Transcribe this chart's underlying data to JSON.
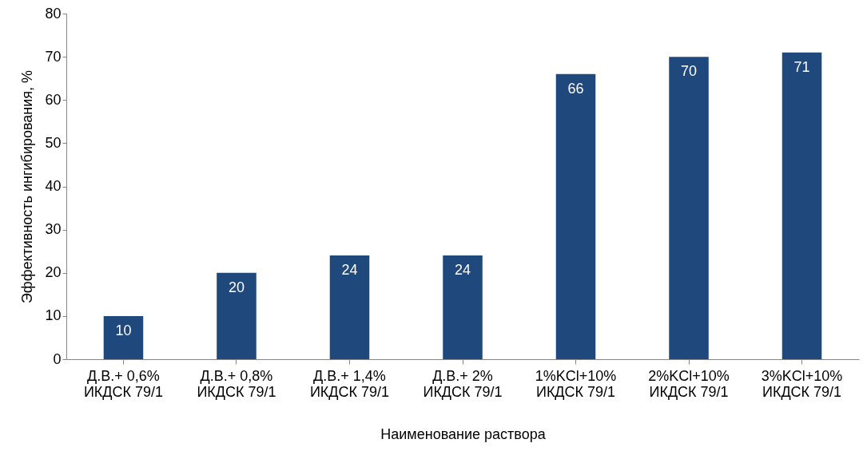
{
  "chart_data": {
    "type": "bar",
    "xlabel": "Наименование раствора",
    "ylabel": "Эффективность ингибирования, %",
    "categories": [
      "Д.В.+ 0,6%\nИКДСК 79/1",
      "Д.В.+ 0,8%\nИКДСК 79/1",
      "Д.В.+ 1,4%\nИКДСК 79/1",
      "Д.В.+ 2%\nИКДСК 79/1",
      "1%KCl+10%\nИКДСК 79/1",
      "2%KCl+10%\nИКДСК 79/1",
      "3%KCl+10%\nИКДСК 79/1"
    ],
    "values": [
      10,
      20,
      24,
      24,
      66,
      70,
      71
    ],
    "color": "#1f497d",
    "data_labels": true,
    "ylim": [
      0,
      80
    ],
    "yticks": [
      0,
      10,
      20,
      30,
      40,
      50,
      60,
      70,
      80
    ],
    "grid": false
  }
}
